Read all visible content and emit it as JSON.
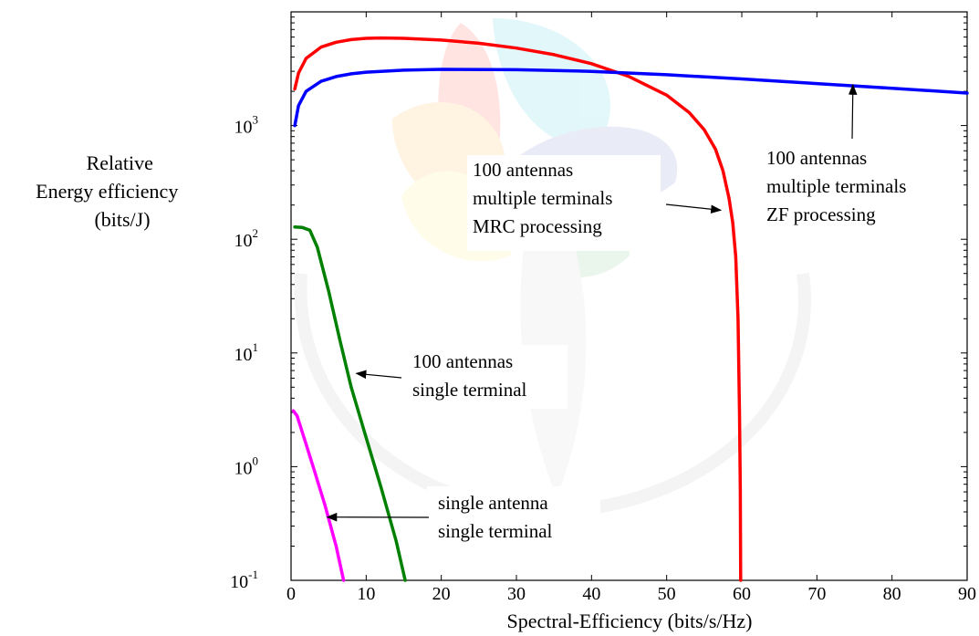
{
  "chart_data": {
    "type": "line",
    "title": "",
    "xlabel": "Spectral-Efficiency (bits/s/Hz)",
    "ylabel": [
      "Relative",
      "Energy efficiency",
      "(bits/J)"
    ],
    "xlim": [
      0,
      90
    ],
    "ylim": [
      0.1,
      10000
    ],
    "yscale": "log",
    "grid": false,
    "legend": "none",
    "x_ticks": [
      {
        "value": 0,
        "label": "0"
      },
      {
        "value": 10,
        "label": "10"
      },
      {
        "value": 20,
        "label": "20"
      },
      {
        "value": 30,
        "label": "30"
      },
      {
        "value": 40,
        "label": "40"
      },
      {
        "value": 50,
        "label": "50"
      },
      {
        "value": 60,
        "label": "60"
      },
      {
        "value": 70,
        "label": "70"
      },
      {
        "value": 80,
        "label": "80"
      },
      {
        "value": 90,
        "label": "90"
      }
    ],
    "y_ticks": [
      {
        "value": 0.1,
        "base": "10",
        "exp": "-1"
      },
      {
        "value": 1,
        "base": "10",
        "exp": "0"
      },
      {
        "value": 10,
        "base": "10",
        "exp": "1"
      },
      {
        "value": 100,
        "base": "10",
        "exp": "2"
      },
      {
        "value": 1000,
        "base": "10",
        "exp": "3"
      }
    ],
    "series": [
      {
        "color": "#ff0000",
        "points": [
          [
            0.5,
            2100
          ],
          [
            1,
            2900
          ],
          [
            2,
            3900
          ],
          [
            4,
            4900
          ],
          [
            6,
            5400
          ],
          [
            8,
            5700
          ],
          [
            10,
            5850
          ],
          [
            12,
            5900
          ],
          [
            15,
            5850
          ],
          [
            20,
            5650
          ],
          [
            25,
            5300
          ],
          [
            30,
            4800
          ],
          [
            35,
            4200
          ],
          [
            40,
            3500
          ],
          [
            45,
            2700
          ],
          [
            50,
            1850
          ],
          [
            53,
            1300
          ],
          [
            55,
            920
          ],
          [
            56.5,
            620
          ],
          [
            57.5,
            400
          ],
          [
            58.3,
            230
          ],
          [
            58.8,
            140
          ],
          [
            59.2,
            70
          ],
          [
            59.5,
            20
          ],
          [
            59.7,
            3
          ],
          [
            59.8,
            0.6
          ],
          [
            59.85,
            0.1
          ]
        ]
      },
      {
        "color": "#0000ff",
        "points": [
          [
            0.5,
            1000
          ],
          [
            1,
            1500
          ],
          [
            2,
            2000
          ],
          [
            4,
            2450
          ],
          [
            6,
            2700
          ],
          [
            8,
            2850
          ],
          [
            10,
            2950
          ],
          [
            15,
            3070
          ],
          [
            20,
            3120
          ],
          [
            30,
            3100
          ],
          [
            40,
            3000
          ],
          [
            50,
            2800
          ],
          [
            60,
            2570
          ],
          [
            70,
            2340
          ],
          [
            80,
            2130
          ],
          [
            90,
            1930
          ]
        ]
      },
      {
        "color": "#008000",
        "points": [
          [
            0.5,
            128
          ],
          [
            1.5,
            127
          ],
          [
            2.5,
            120
          ],
          [
            3.5,
            85
          ],
          [
            5,
            35
          ],
          [
            6.5,
            13
          ],
          [
            8,
            5
          ],
          [
            10,
            1.8
          ],
          [
            12,
            0.65
          ],
          [
            14,
            0.22
          ],
          [
            15.2,
            0.1
          ]
        ]
      },
      {
        "color": "#ff00ff",
        "points": [
          [
            0.3,
            3.1
          ],
          [
            0.8,
            2.8
          ],
          [
            1.5,
            2
          ],
          [
            3,
            0.97
          ],
          [
            4.5,
            0.46
          ],
          [
            6,
            0.2
          ],
          [
            7,
            0.1
          ]
        ]
      }
    ],
    "annotations": [
      {
        "lines": [
          "100 antennas",
          "multiple terminals",
          "MRC processing"
        ],
        "arrow_to": [
          57.2,
          180
        ]
      },
      {
        "lines": [
          "100 antennas",
          "multiple terminals",
          "ZF processing"
        ],
        "arrow_to": [
          74.8,
          2280
        ]
      },
      {
        "lines": [
          "100 antennas",
          "single terminal"
        ],
        "arrow_to": [
          8.7,
          6.6
        ]
      },
      {
        "lines": [
          "single antenna",
          "single terminal"
        ],
        "arrow_to": [
          4.8,
          0.36
        ]
      }
    ]
  }
}
